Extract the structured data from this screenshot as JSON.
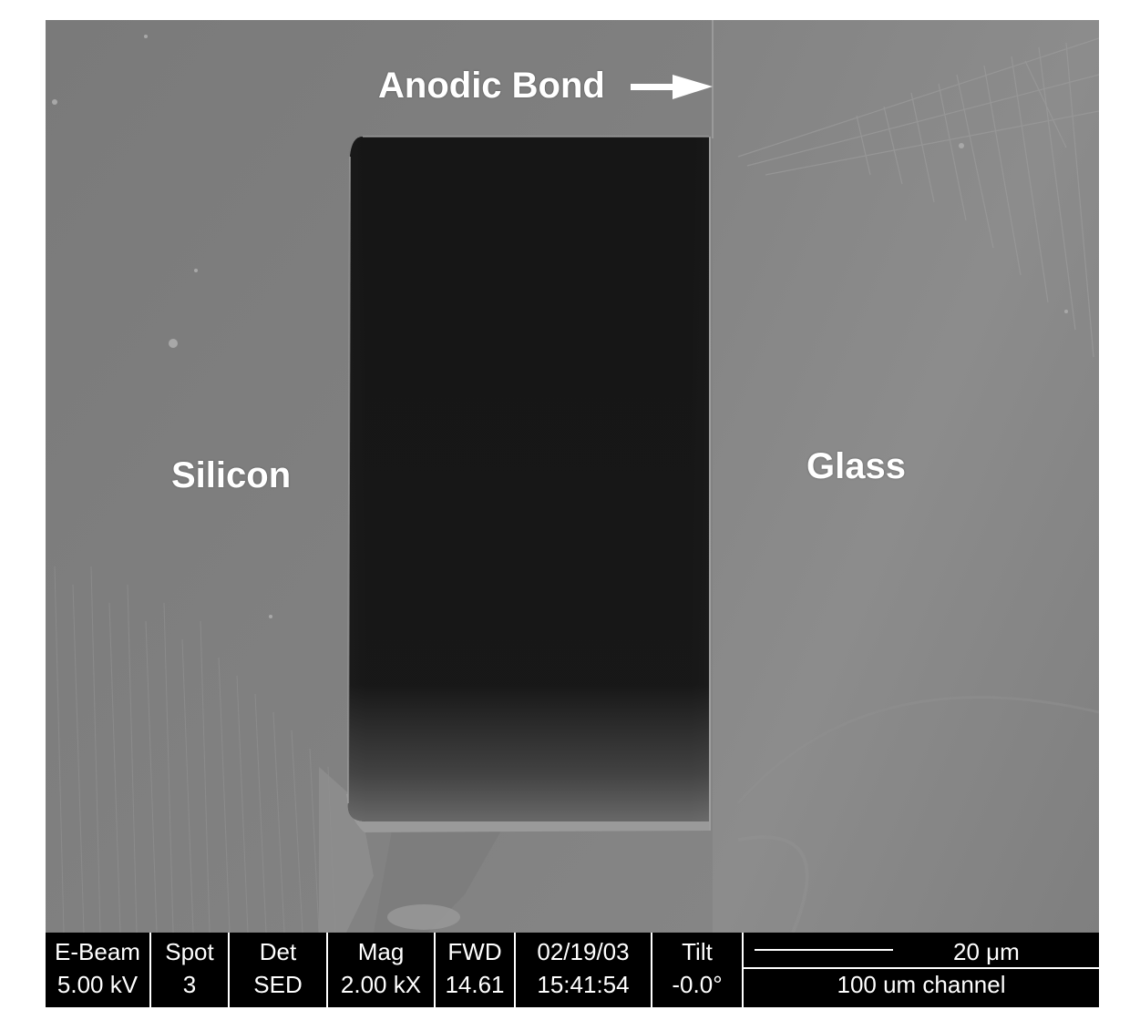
{
  "labels": {
    "anodic_bond": "Anodic Bond",
    "silicon": "Silicon",
    "glass": "Glass"
  },
  "databar": {
    "ebeam": {
      "label": "E-Beam",
      "value": "5.00 kV"
    },
    "spot": {
      "label": "Spot",
      "value": "3"
    },
    "det": {
      "label": "Det",
      "value": "SED"
    },
    "mag": {
      "label": "Mag",
      "value": "2.00 kX"
    },
    "fwd": {
      "label": "FWD",
      "value": "14.61"
    },
    "datetime": {
      "date": "02/19/03",
      "time": "15:41:54"
    },
    "tilt": {
      "label": "Tilt",
      "value": "-0.0°"
    },
    "scale": {
      "text": "20 μm",
      "caption": "100 um channel"
    }
  },
  "colors": {
    "silicon_gray": "#7d7d7d",
    "glass_gray": "#868686",
    "channel_dark": "#161616",
    "databar": "#000000",
    "text": "#ffffff"
  }
}
